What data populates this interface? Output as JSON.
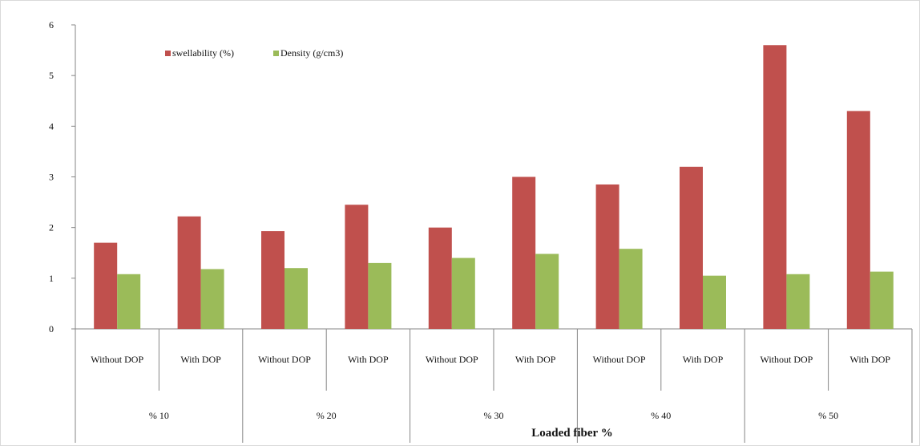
{
  "chart_data": {
    "type": "bar",
    "title": "",
    "xlabel": "Loaded fiber %",
    "ylabel": "",
    "ylim": [
      0,
      6
    ],
    "yticks": [
      0,
      1,
      2,
      3,
      4,
      5,
      6
    ],
    "grid": false,
    "legend_position": "top-left",
    "categories": [
      "Without DOP",
      "With DOP",
      "Without DOP",
      "With DOP",
      "Without DOP",
      "With DOP",
      "Without DOP",
      "With DOP",
      "Without DOP",
      "With DOP"
    ],
    "groups": [
      "% 10",
      "% 20",
      "% 30",
      "% 40",
      "% 50"
    ],
    "series": [
      {
        "name": "swellability (%)",
        "color": "#c0504d",
        "values": [
          1.7,
          2.22,
          1.93,
          2.45,
          2.0,
          3.0,
          2.85,
          3.2,
          5.6,
          4.3
        ]
      },
      {
        "name": "Density (g/cm3)",
        "color": "#9bbb59",
        "values": [
          1.08,
          1.18,
          1.2,
          1.3,
          1.4,
          1.48,
          1.58,
          1.05,
          1.08,
          1.13
        ]
      }
    ]
  }
}
